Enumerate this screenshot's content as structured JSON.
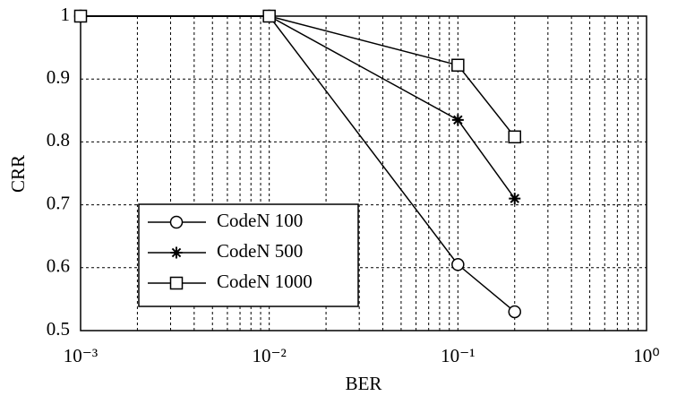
{
  "chart_data": {
    "type": "line",
    "xlabel": "BER",
    "ylabel": "CRR",
    "x": [
      0.001,
      0.01,
      0.1,
      0.2
    ],
    "series": [
      {
        "name": "CodeN 100",
        "color": "#000000",
        "marker": "circle",
        "values": [
          1,
          1,
          0.605,
          0.53
        ]
      },
      {
        "name": "CodeN 500",
        "color": "#000000",
        "marker": "star",
        "values": [
          1,
          1,
          0.835,
          0.71
        ]
      },
      {
        "name": "CodeN 1000",
        "color": "#000000",
        "marker": "square",
        "values": [
          1,
          1,
          0.922,
          0.808
        ]
      }
    ],
    "xlim": [
      0.001,
      1
    ],
    "xlog": true,
    "xticks": [
      {
        "value": 0.001,
        "label": "10⁻³"
      },
      {
        "value": 0.01,
        "label": "10⁻²"
      },
      {
        "value": 0.1,
        "label": "10⁻¹"
      },
      {
        "value": 1,
        "label": "10⁰"
      }
    ],
    "xminorticks": [
      0.002,
      0.003,
      0.004,
      0.005,
      0.006,
      0.007,
      0.008,
      0.009,
      0.02,
      0.03,
      0.04,
      0.05,
      0.06,
      0.07,
      0.08,
      0.09,
      0.2,
      0.3,
      0.4,
      0.5,
      0.6,
      0.7,
      0.8,
      0.9
    ],
    "ylim": [
      0.5,
      1
    ],
    "yticks": [
      0.5,
      0.6,
      0.7,
      0.8,
      0.9,
      1
    ],
    "grid": true,
    "legend": "lower left"
  }
}
